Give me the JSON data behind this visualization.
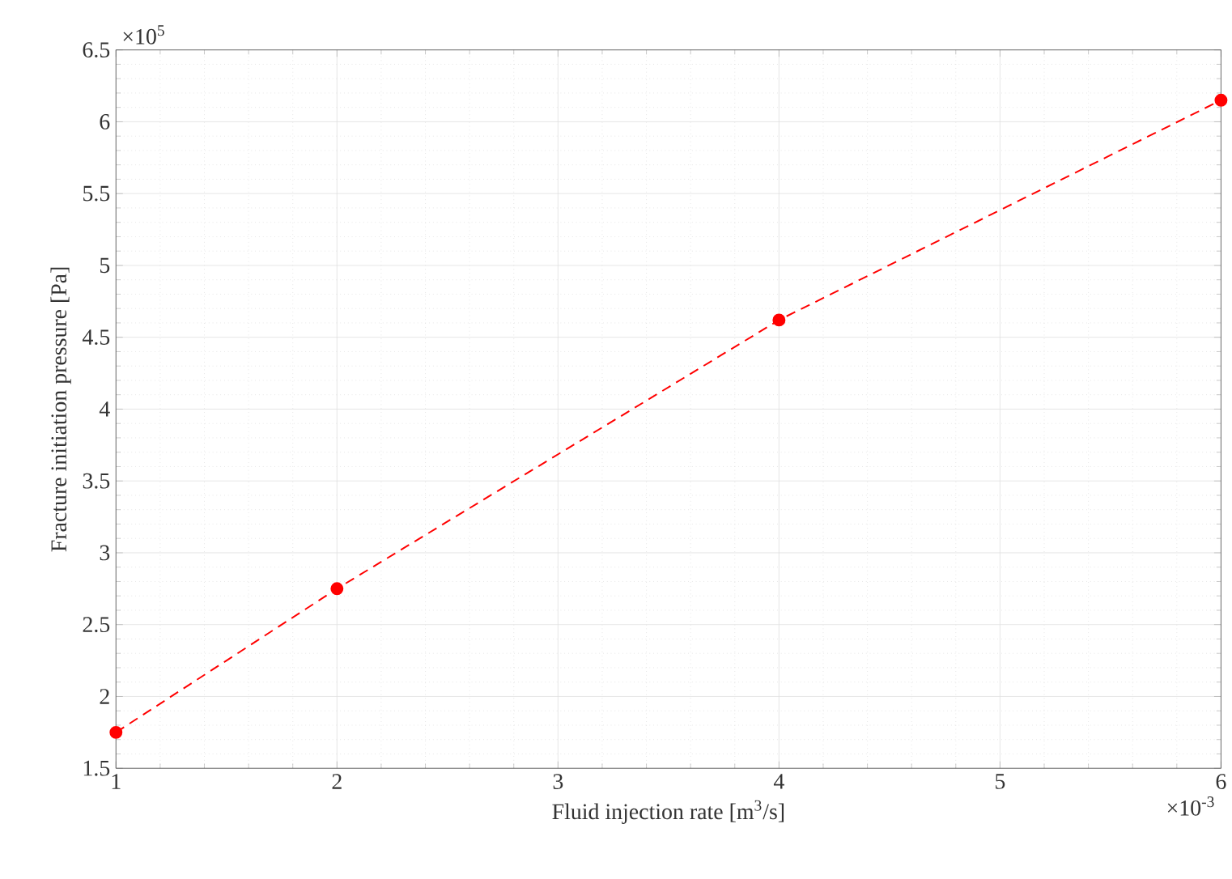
{
  "chart_data": {
    "type": "line",
    "xlabel": "Fluid injection rate [m$^{3}$/s]",
    "ylabel": "Fracture initiation pressure [Pa]",
    "x": [
      1,
      2,
      4,
      6
    ],
    "series": [
      {
        "color": "#ff0000",
        "values": [
          1.75,
          2.75,
          4.62,
          6.15
        ]
      }
    ],
    "xlim": [
      1,
      6
    ],
    "ylim": [
      1.5,
      6.5
    ],
    "xticks": [
      1,
      2,
      3,
      4,
      5,
      6
    ],
    "yticks": [
      1.5,
      2,
      2.5,
      3,
      3.5,
      4,
      4.5,
      5,
      5.5,
      6,
      6.5
    ],
    "annotations": [
      "×10$^{5}$",
      "×10$^{-3}$"
    ],
    "grid": true,
    "marker": "circle",
    "line_style": "dashed"
  }
}
